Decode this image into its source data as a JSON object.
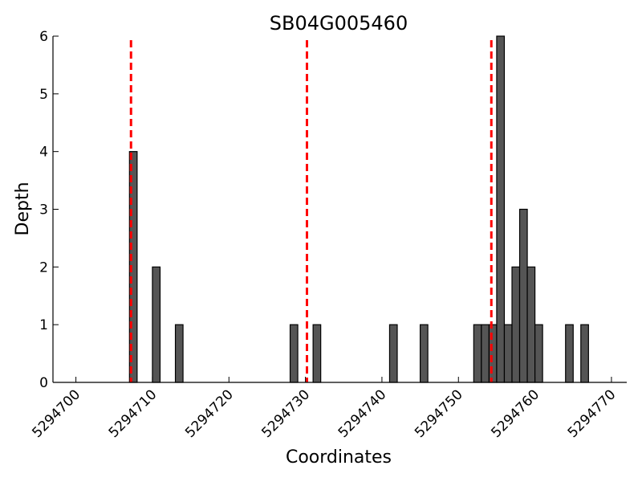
{
  "chart_data": {
    "type": "bar",
    "title": "SB04G005460",
    "xlabel": "Coordinates",
    "ylabel": "Depth",
    "xlim": [
      5294697,
      5294772
    ],
    "ylim": [
      0,
      6
    ],
    "x_ticks": [
      5294700,
      5294710,
      5294720,
      5294730,
      5294740,
      5294750,
      5294760,
      5294770
    ],
    "x_tick_labels": [
      "5294700",
      "5294710",
      "5294720",
      "5294730",
      "5294740",
      "5294750",
      "5294760",
      "5294770"
    ],
    "y_ticks": [
      0,
      1,
      2,
      3,
      4,
      5,
      6
    ],
    "y_tick_labels": [
      "0",
      "1",
      "2",
      "3",
      "4",
      "5",
      "6"
    ],
    "bar_color": "#555555",
    "bar_edge_color": "#000000",
    "bar_width": 1,
    "bars": [
      {
        "x": 5294707,
        "value": 4
      },
      {
        "x": 5294710,
        "value": 2
      },
      {
        "x": 5294713,
        "value": 1
      },
      {
        "x": 5294728,
        "value": 1
      },
      {
        "x": 5294731,
        "value": 1
      },
      {
        "x": 5294741,
        "value": 1
      },
      {
        "x": 5294745,
        "value": 1
      },
      {
        "x": 5294752,
        "value": 1
      },
      {
        "x": 5294753,
        "value": 1
      },
      {
        "x": 5294754,
        "value": 1
      },
      {
        "x": 5294755,
        "value": 6
      },
      {
        "x": 5294756,
        "value": 1
      },
      {
        "x": 5294757,
        "value": 2
      },
      {
        "x": 5294758,
        "value": 3
      },
      {
        "x": 5294759,
        "value": 2
      },
      {
        "x": 5294760,
        "value": 1
      },
      {
        "x": 5294764,
        "value": 1
      },
      {
        "x": 5294766,
        "value": 1
      }
    ],
    "reference_lines": {
      "color": "#ff0000",
      "style": "dashed",
      "x": [
        5294707.2,
        5294730.2,
        5294754.3
      ]
    },
    "grid": false,
    "spines": "left-bottom"
  }
}
